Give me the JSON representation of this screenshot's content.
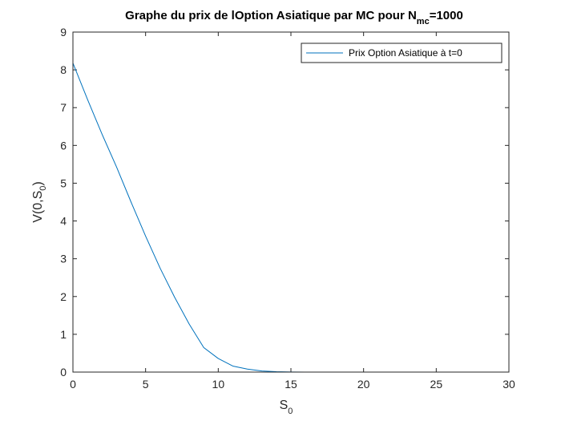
{
  "chart_data": {
    "type": "line",
    "title": {
      "pre": "Graphe du prix de lOption Asiatique par MC pour N",
      "sub": "mc",
      "post": "=1000"
    },
    "xlabel": {
      "main": "S",
      "sub": "0"
    },
    "ylabel": {
      "main": "V(0,S",
      "sub": "0",
      "post": ")"
    },
    "xlim": [
      0,
      30
    ],
    "ylim": [
      0,
      9
    ],
    "xticks": [
      "0",
      "5",
      "10",
      "15",
      "20",
      "25",
      "30"
    ],
    "yticks": [
      "0",
      "1",
      "2",
      "3",
      "4",
      "5",
      "6",
      "7",
      "8",
      "9"
    ],
    "grid": false,
    "legend_position": "top-right",
    "series": [
      {
        "name": "Prix Option Asiatique à t=0",
        "color": "#0072BD",
        "x": [
          0,
          1,
          2,
          3,
          4,
          5,
          6,
          7,
          8,
          9,
          10,
          11,
          12,
          13,
          14,
          15,
          16,
          17,
          18,
          19,
          20,
          21,
          22,
          23,
          24,
          25,
          26,
          27,
          28,
          29,
          30
        ],
        "y": [
          8.18,
          7.22,
          6.3,
          5.43,
          4.5,
          3.6,
          2.75,
          1.98,
          1.27,
          0.65,
          0.36,
          0.16,
          0.08,
          0.03,
          0.01,
          0.003,
          0.001,
          0,
          0,
          0,
          0,
          0,
          0,
          0,
          0,
          0,
          0,
          0,
          0,
          0,
          0
        ]
      }
    ]
  }
}
